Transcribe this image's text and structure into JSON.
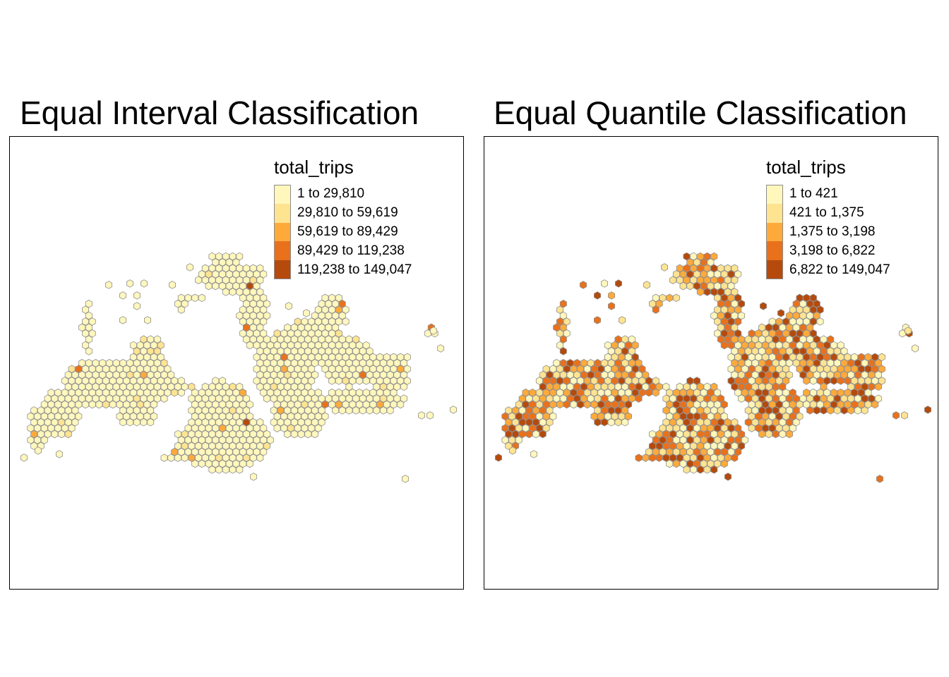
{
  "panels": [
    {
      "id": "left",
      "title": "Equal Interval Classification",
      "legend": {
        "title": "total_trips",
        "classes": [
          {
            "label": "1 to 29,810",
            "color": "#FFF7BC"
          },
          {
            "label": "29,810 to 59,619",
            "color": "#FEE391"
          },
          {
            "label": "59,619 to 89,429",
            "color": "#FEAA3B"
          },
          {
            "label": "89,429 to 119,238",
            "color": "#E9711C"
          },
          {
            "label": "119,238 to 149,047",
            "color": "#B54A0C"
          }
        ]
      }
    },
    {
      "id": "right",
      "title": "Equal Quantile Classification",
      "legend": {
        "title": "total_trips",
        "classes": [
          {
            "label": "1 to 421",
            "color": "#FFF7BC"
          },
          {
            "label": "421 to 1,375",
            "color": "#FEE391"
          },
          {
            "label": "1,375 to 3,198",
            "color": "#FEAA3B"
          },
          {
            "label": "3,198 to 6,822",
            "color": "#E9711C"
          },
          {
            "label": "6,822 to 149,047",
            "color": "#B54A0C"
          }
        ]
      }
    }
  ],
  "hex_border_color": "#8F8F8F"
}
